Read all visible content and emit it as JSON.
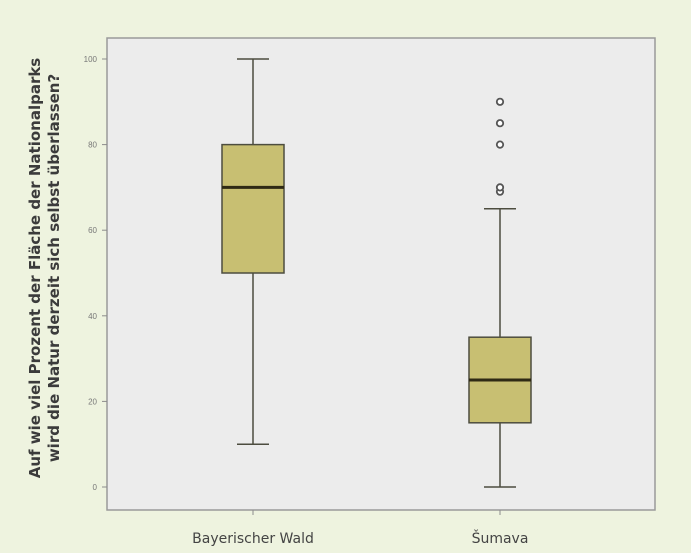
{
  "chart_data": {
    "type": "boxplot",
    "title": "",
    "xlabel": "",
    "ylabel_lines": [
      "Auf wie viel Prozent der Fläche der Nationalparks",
      "wird die Natur derzeit sich selbst überlassen?"
    ],
    "ylim": [
      0,
      100
    ],
    "yticks": [
      0,
      20,
      40,
      60,
      80,
      100
    ],
    "ytick_labels": [
      "0",
      "20",
      "40",
      "60",
      "80",
      "100"
    ],
    "grid": false,
    "categories": [
      "Bayerischer Wald",
      "Šumava"
    ],
    "boxes": [
      {
        "category": "Bayerischer Wald",
        "whisker_low": 10,
        "q1": 50,
        "median": 70,
        "q3": 80,
        "whisker_high": 100,
        "outliers": []
      },
      {
        "category": "Šumava",
        "whisker_low": 0,
        "q1": 15,
        "median": 25,
        "q3": 35,
        "whisker_high": 65,
        "outliers": [
          69,
          70,
          80,
          85,
          90
        ]
      }
    ],
    "colors": {
      "page_background": "#eef3df",
      "plot_background": "#ececec",
      "box_fill": "#c8bf72",
      "box_stroke": "#4d4d3f",
      "median": "#2f2a14",
      "outlier_fill": "#ffffff",
      "outlier_stroke": "#555555"
    }
  }
}
